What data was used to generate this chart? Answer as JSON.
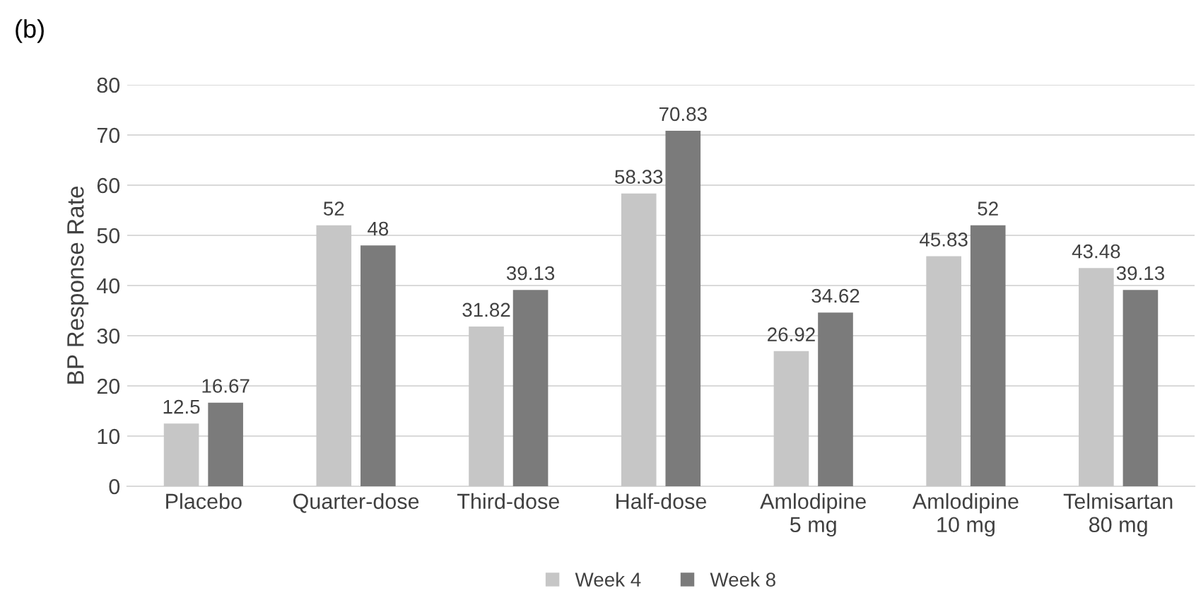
{
  "chart_data": {
    "type": "bar",
    "title": "(b)",
    "ylabel": "BP Response Rate",
    "categories": [
      "Placebo",
      "Quarter-dose",
      "Third-dose",
      "Half-dose",
      "Amlodipine\n5 mg",
      "Amlodipine\n10 mg",
      "Telmisartan\n80 mg"
    ],
    "series": [
      {
        "name": "Week 4",
        "color": "#c6c6c6",
        "values": [
          12.5,
          52,
          31.82,
          58.33,
          26.92,
          45.83,
          43.48
        ]
      },
      {
        "name": "Week 8",
        "color": "#7b7b7b",
        "values": [
          16.67,
          48,
          39.13,
          70.83,
          34.62,
          52,
          39.13
        ]
      }
    ],
    "ylim": [
      0,
      80
    ],
    "yticks": [
      0,
      10,
      20,
      30,
      40,
      50,
      60,
      70,
      80
    ],
    "grid": "y",
    "legend": "bottom",
    "data_labels": true
  }
}
